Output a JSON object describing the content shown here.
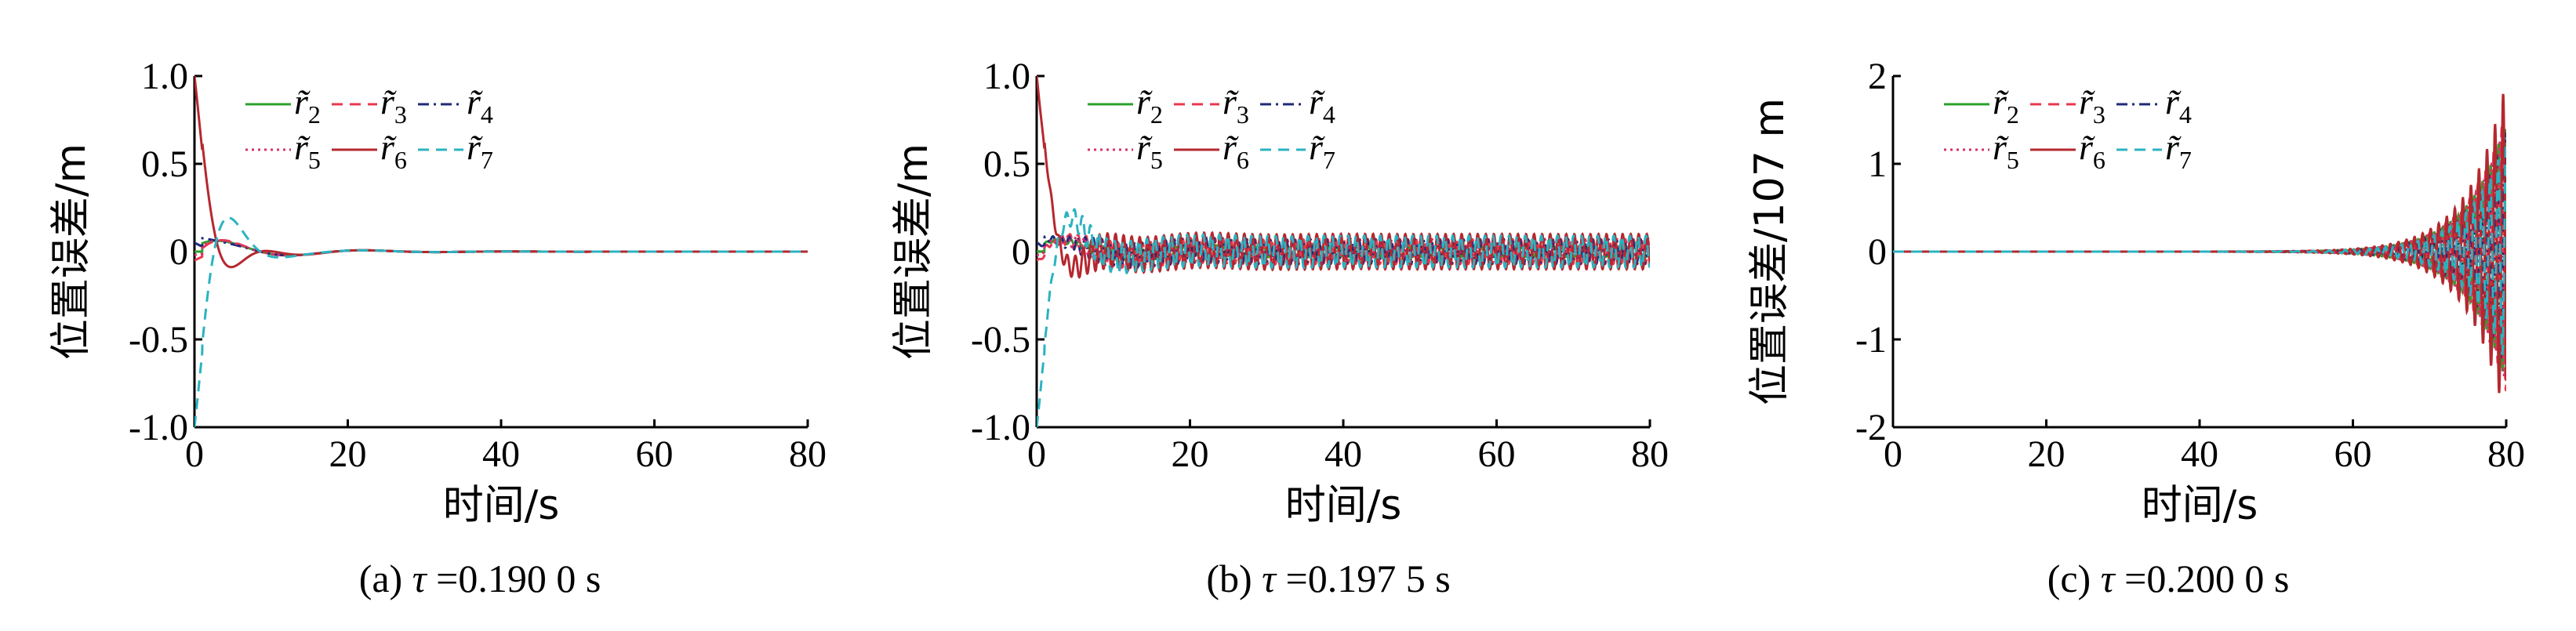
{
  "chart_data": [
    {
      "id": "a",
      "type": "line",
      "caption_prefix": "(a) ",
      "caption_tau": "τ",
      "caption_value": " =0.190 0 s",
      "ylabel": "位置误差/m",
      "xlabel": "时间/s",
      "xlim": [
        0,
        80
      ],
      "ylim": [
        -1.0,
        1.0
      ],
      "xticks": [
        0,
        20,
        40,
        60,
        80
      ],
      "xtick_labels": [
        "0",
        "20",
        "40",
        "60",
        "80"
      ],
      "yticks": [
        -1.0,
        -0.5,
        0,
        0.5,
        1.0
      ],
      "ytick_labels": [
        "-1.0",
        "-0.5",
        "0",
        "0.5",
        "1.0"
      ],
      "behavior": "converging",
      "series": [
        {
          "name": "r2",
          "sub": "2",
          "color": "#2ca02c",
          "dash": "solid",
          "start": 0.0,
          "ripple_amp": 0.0
        },
        {
          "name": "r3",
          "sub": "3",
          "color": "#e8384f",
          "dash": "dashed",
          "start": -0.05,
          "ripple_amp": 0.0
        },
        {
          "name": "r4",
          "sub": "4",
          "color": "#1f2a7a",
          "dash": "dashdot",
          "start": 0.05,
          "ripple_amp": 0.0
        },
        {
          "name": "r5",
          "sub": "5",
          "color": "#d6336c",
          "dash": "dotted",
          "start": -0.02,
          "ripple_amp": 0.0
        },
        {
          "name": "r6",
          "sub": "6",
          "color": "#b5282f",
          "dash": "solid",
          "start": 1.0,
          "ripple_amp": 0.0
        },
        {
          "name": "r7",
          "sub": "7",
          "color": "#2bb3c0",
          "dash": "dashed",
          "start": -1.0,
          "ripple_amp": 0.0
        }
      ]
    },
    {
      "id": "b",
      "type": "line",
      "caption_prefix": "(b) ",
      "caption_tau": "τ",
      "caption_value": " =0.197 5 s",
      "ylabel": "位置误差/m",
      "xlabel": "时间/s",
      "xlim": [
        0,
        80
      ],
      "ylim": [
        -1.0,
        1.0
      ],
      "xticks": [
        0,
        20,
        40,
        60,
        80
      ],
      "xtick_labels": [
        "0",
        "20",
        "40",
        "60",
        "80"
      ],
      "yticks": [
        -1.0,
        -0.5,
        0,
        0.5,
        1.0
      ],
      "ytick_labels": [
        "-1.0",
        "-0.5",
        "0",
        "0.5",
        "1.0"
      ],
      "behavior": "sustained",
      "series": [
        {
          "name": "r2",
          "sub": "2",
          "color": "#2ca02c",
          "dash": "solid",
          "start": 0.0,
          "ripple_amp": 0.03
        },
        {
          "name": "r3",
          "sub": "3",
          "color": "#e8384f",
          "dash": "dashed",
          "start": -0.05,
          "ripple_amp": 0.07
        },
        {
          "name": "r4",
          "sub": "4",
          "color": "#1f2a7a",
          "dash": "dashdot",
          "start": 0.05,
          "ripple_amp": 0.07
        },
        {
          "name": "r5",
          "sub": "5",
          "color": "#d6336c",
          "dash": "dotted",
          "start": -0.02,
          "ripple_amp": 0.06
        },
        {
          "name": "r6",
          "sub": "6",
          "color": "#b5282f",
          "dash": "solid",
          "start": 1.0,
          "ripple_amp": 0.1
        },
        {
          "name": "r7",
          "sub": "7",
          "color": "#2bb3c0",
          "dash": "dashed",
          "start": -1.0,
          "ripple_amp": 0.09
        }
      ]
    },
    {
      "id": "c",
      "type": "line",
      "caption_prefix": "(c) ",
      "caption_tau": "τ",
      "caption_value": " =0.200 0 s",
      "ylabel": "位置误差/107 m",
      "xlabel": "时间/s",
      "xlim": [
        0,
        80
      ],
      "ylim": [
        -2,
        2
      ],
      "xticks": [
        0,
        20,
        40,
        60,
        80
      ],
      "xtick_labels": [
        "0",
        "20",
        "40",
        "60",
        "80"
      ],
      "yticks": [
        -2,
        -1,
        0,
        1,
        2
      ],
      "ytick_labels": [
        "-2",
        "-1",
        "0",
        "1",
        "2"
      ],
      "behavior": "diverging",
      "series": [
        {
          "name": "r2",
          "sub": "2",
          "color": "#2ca02c",
          "dash": "solid",
          "start": 0.0,
          "ripple_amp": 1.5
        },
        {
          "name": "r3",
          "sub": "3",
          "color": "#e8384f",
          "dash": "dashed",
          "start": 0.0,
          "ripple_amp": 1.6
        },
        {
          "name": "r4",
          "sub": "4",
          "color": "#1f2a7a",
          "dash": "dashdot",
          "start": 0.0,
          "ripple_amp": 1.4
        },
        {
          "name": "r5",
          "sub": "5",
          "color": "#d6336c",
          "dash": "dotted",
          "start": 0.0,
          "ripple_amp": 1.5
        },
        {
          "name": "r6",
          "sub": "6",
          "color": "#b5282f",
          "dash": "solid",
          "start": 0.0,
          "ripple_amp": 1.95
        },
        {
          "name": "r7",
          "sub": "7",
          "color": "#2bb3c0",
          "dash": "dashed",
          "start": 0.0,
          "ripple_amp": 1.3
        }
      ]
    }
  ]
}
